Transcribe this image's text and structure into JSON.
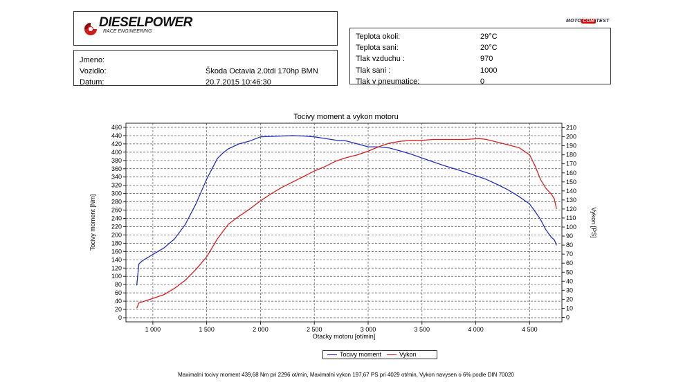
{
  "brand": {
    "name": "DIESELPOWER",
    "tagline": "RACE ENGINEERING",
    "partner": {
      "prefix": "MOTO",
      "badge": "COM",
      "suffix": "TEST"
    }
  },
  "info": {
    "rows": [
      {
        "label": "Jmeno:",
        "value": ""
      },
      {
        "label": "Vozidlo:",
        "value": "Škoda Octavia 2.0tdi 170hp BMN"
      },
      {
        "label": "Datum:",
        "value": "20.7.2015 10:46:30"
      }
    ]
  },
  "conditions": {
    "rows": [
      {
        "label": "Teplota okoli:",
        "value": "29°C"
      },
      {
        "label": "Teplota sani:",
        "value": "20°C"
      },
      {
        "label": "Tlak vzduchu :",
        "value": "970"
      },
      {
        "label": "Tlak sani :",
        "value": "1000"
      },
      {
        "label": "Tlak v pneumatice:",
        "value": "0"
      }
    ]
  },
  "footer": "Maximalni tocivy moment 439,68 Nm pri 2296 ot/min,  Maximalni vykon 197,67 PS pri 4029 ot/min,  Vykon navysen o 6% podle DIN 70020",
  "chart_data": {
    "type": "line",
    "title": "Tocivy moment a vykon motoru",
    "xlabel": "Otacky motoru [ot/min]",
    "ylabel_left": "Tocivy moment [Nm]",
    "ylabel_right": "Vykon [PS]",
    "xlim": [
      750,
      4800
    ],
    "ylim_left": [
      -10,
      470
    ],
    "ylim_right": [
      -5,
      215
    ],
    "x_ticks": [
      1000,
      1500,
      2000,
      2500,
      3000,
      3500,
      4000,
      4500
    ],
    "x_tick_labels": [
      "1 000",
      "1 500",
      "2 000",
      "2 500",
      "3 000",
      "3 500",
      "4 000",
      "4 500"
    ],
    "y_left_ticks": [
      0,
      20,
      40,
      60,
      80,
      100,
      120,
      140,
      160,
      180,
      200,
      220,
      240,
      260,
      280,
      300,
      320,
      340,
      360,
      380,
      400,
      420,
      440,
      460
    ],
    "y_right_ticks": [
      0,
      10,
      20,
      30,
      40,
      50,
      60,
      70,
      80,
      90,
      100,
      110,
      120,
      130,
      140,
      150,
      160,
      170,
      180,
      190,
      200,
      210
    ],
    "grid": true,
    "legend_position": "bottom-center",
    "series": [
      {
        "name": "Tocivy moment",
        "axis": "left",
        "color": "#1f2fbf",
        "x": [
          850,
          870,
          900,
          950,
          1000,
          1100,
          1200,
          1300,
          1400,
          1500,
          1600,
          1650,
          1700,
          1800,
          1900,
          2000,
          2100,
          2200,
          2296,
          2400,
          2500,
          2600,
          2700,
          2800,
          2900,
          3000,
          3100,
          3200,
          3300,
          3400,
          3500,
          3600,
          3700,
          3800,
          3900,
          4000,
          4100,
          4200,
          4300,
          4400,
          4500,
          4550,
          4600,
          4650,
          4700,
          4730,
          4750
        ],
        "y": [
          78,
          130,
          137,
          145,
          153,
          168,
          190,
          225,
          275,
          335,
          385,
          398,
          408,
          420,
          427,
          437,
          438,
          439,
          440,
          439,
          437,
          433,
          429,
          427,
          420,
          413,
          413,
          410,
          403,
          395,
          386,
          377,
          368,
          360,
          352,
          343,
          334,
          322,
          309,
          293,
          275,
          257,
          238,
          213,
          195,
          188,
          175
        ]
      },
      {
        "name": "Vykon",
        "axis": "right",
        "color": "#d42020",
        "x": [
          850,
          870,
          900,
          1000,
          1100,
          1200,
          1300,
          1400,
          1500,
          1600,
          1700,
          1800,
          1900,
          2000,
          2100,
          2200,
          2300,
          2400,
          2500,
          2600,
          2700,
          2800,
          2900,
          3000,
          3100,
          3200,
          3300,
          3400,
          3500,
          3600,
          3700,
          3800,
          3900,
          4029,
          4100,
          4200,
          4300,
          4400,
          4500,
          4550,
          4600,
          4650,
          4700,
          4730,
          4750
        ],
        "y": [
          10,
          16,
          17,
          21,
          25,
          32,
          41,
          53,
          67,
          87,
          103,
          112,
          120,
          129,
          137,
          144,
          150,
          156,
          162,
          167,
          173,
          177,
          180,
          184,
          189,
          193,
          195,
          196,
          196,
          197,
          197,
          197,
          197,
          198,
          197,
          194,
          191,
          188,
          180,
          168,
          153,
          143,
          137,
          131,
          120
        ]
      }
    ]
  }
}
